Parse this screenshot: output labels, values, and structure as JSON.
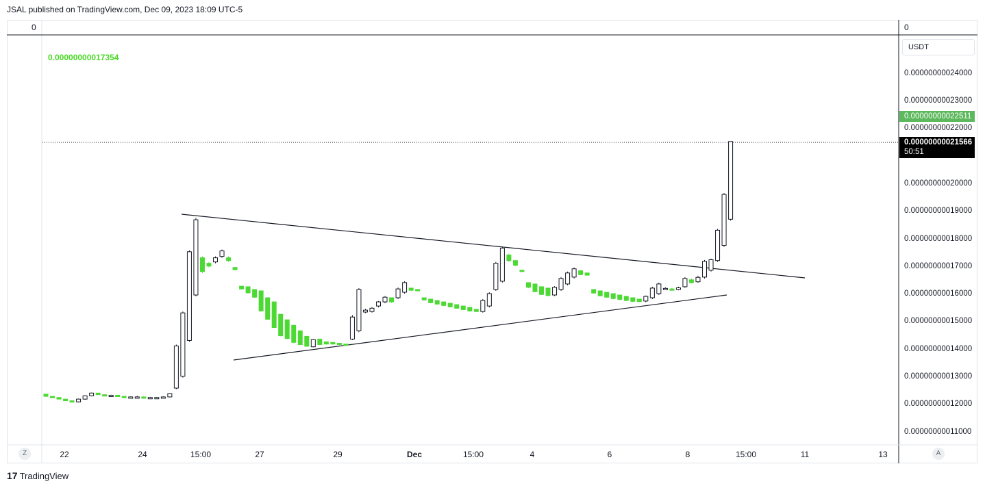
{
  "header": {
    "published_text": "JSAL published on TradingView.com, Dec 09, 2023 18:09 UTC-5"
  },
  "panes": {
    "left_scale_top": "0",
    "right_scale_top": "0"
  },
  "currency": "USDT",
  "indicator": {
    "value": "0.00000000017354",
    "color": "#48d823"
  },
  "price_axis": {
    "ticks": [
      "0.00000000024000",
      "0.00000000023000",
      "0.00000000022000",
      "0.00000000021000",
      "0.00000000020000",
      "0.00000000019000",
      "0.00000000018000",
      "0.00000000017000",
      "0.00000000016000",
      "0.00000000015000",
      "0.00000000014000",
      "0.00000000013000",
      "0.00000000012000",
      "0.00000000011000"
    ],
    "green_label": "0.00000000022511",
    "green_label_color": "#5cb85c",
    "last_price": "0.00000000021566",
    "countdown": "50:51"
  },
  "time_axis": {
    "ticks": [
      "22",
      "24",
      "15:00",
      "27",
      "29",
      "Dec",
      "15:00",
      "4",
      "6",
      "8",
      "15:00",
      "11",
      "13"
    ]
  },
  "controls": {
    "left_button": "Z",
    "right_button": "A"
  },
  "branding": {
    "logo_mark": "17",
    "logo_text": "TradingView"
  },
  "chart_data": {
    "type": "candlestick",
    "title": "",
    "ylim": [
      1.07e-10,
      2.44e-10
    ],
    "up_color": "#ffffff",
    "down_color": "#4cd934",
    "outline_color": "#131722",
    "candles": [
      {
        "o": 1.24,
        "h": 1.24,
        "l": 1.232,
        "c": 1.232
      },
      {
        "o": 1.232,
        "h": 1.232,
        "l": 1.228,
        "c": 1.228
      },
      {
        "o": 1.228,
        "h": 1.228,
        "l": 1.222,
        "c": 1.222
      },
      {
        "o": 1.222,
        "h": 1.222,
        "l": 1.216,
        "c": 1.216
      },
      {
        "o": 1.216,
        "h": 1.216,
        "l": 1.212,
        "c": 1.212
      },
      {
        "o": 1.212,
        "h": 1.224,
        "l": 1.21,
        "c": 1.222
      },
      {
        "o": 1.222,
        "h": 1.236,
        "l": 1.22,
        "c": 1.234
      },
      {
        "o": 1.234,
        "h": 1.246,
        "l": 1.232,
        "c": 1.244
      },
      {
        "o": 1.244,
        "h": 1.244,
        "l": 1.238,
        "c": 1.238
      },
      {
        "o": 1.238,
        "h": 1.238,
        "l": 1.236,
        "c": 1.236
      },
      {
        "o": 1.236,
        "h": 1.238,
        "l": 1.234,
        "c": 1.236
      },
      {
        "o": 1.236,
        "h": 1.236,
        "l": 1.232,
        "c": 1.232
      },
      {
        "o": 1.232,
        "h": 1.232,
        "l": 1.23,
        "c": 1.23
      },
      {
        "o": 1.23,
        "h": 1.232,
        "l": 1.228,
        "c": 1.23
      },
      {
        "o": 1.23,
        "h": 1.234,
        "l": 1.228,
        "c": 1.23
      },
      {
        "o": 1.23,
        "h": 1.232,
        "l": 1.226,
        "c": 1.228
      },
      {
        "o": 1.228,
        "h": 1.23,
        "l": 1.226,
        "c": 1.228
      },
      {
        "o": 1.228,
        "h": 1.23,
        "l": 1.226,
        "c": 1.228
      },
      {
        "o": 1.228,
        "h": 1.232,
        "l": 1.226,
        "c": 1.23
      },
      {
        "o": 1.23,
        "h": 1.244,
        "l": 1.228,
        "c": 1.242
      },
      {
        "o": 1.262,
        "h": 1.42,
        "l": 1.258,
        "c": 1.415
      },
      {
        "o": 1.305,
        "h": 1.54,
        "l": 1.3,
        "c": 1.535
      },
      {
        "o": 1.435,
        "h": 1.762,
        "l": 1.43,
        "c": 1.757
      },
      {
        "o": 1.6,
        "h": 1.88,
        "l": 1.595,
        "c": 1.873
      },
      {
        "o": 1.735,
        "h": 1.74,
        "l": 1.68,
        "c": 1.685
      },
      {
        "o": 1.715,
        "h": 1.72,
        "l": 1.7,
        "c": 1.705
      },
      {
        "o": 1.72,
        "h": 1.74,
        "l": 1.715,
        "c": 1.735
      },
      {
        "o": 1.74,
        "h": 1.765,
        "l": 1.735,
        "c": 1.76
      },
      {
        "o": 1.735,
        "h": 1.74,
        "l": 1.72,
        "c": 1.725
      },
      {
        "o": 1.7,
        "h": 1.7,
        "l": 1.69,
        "c": 1.692
      },
      {
        "o": 1.632,
        "h": 1.632,
        "l": 1.62,
        "c": 1.622
      },
      {
        "o": 1.63,
        "h": 1.63,
        "l": 1.605,
        "c": 1.608
      },
      {
        "o": 1.62,
        "h": 1.62,
        "l": 1.59,
        "c": 1.592
      },
      {
        "o": 1.615,
        "h": 1.615,
        "l": 1.54,
        "c": 1.542
      },
      {
        "o": 1.59,
        "h": 1.59,
        "l": 1.51,
        "c": 1.512
      },
      {
        "o": 1.575,
        "h": 1.575,
        "l": 1.48,
        "c": 1.482
      },
      {
        "o": 1.53,
        "h": 1.53,
        "l": 1.45,
        "c": 1.452
      },
      {
        "o": 1.51,
        "h": 1.51,
        "l": 1.44,
        "c": 1.442
      },
      {
        "o": 1.49,
        "h": 1.49,
        "l": 1.425,
        "c": 1.428
      },
      {
        "o": 1.47,
        "h": 1.47,
        "l": 1.418,
        "c": 1.42
      },
      {
        "o": 1.45,
        "h": 1.45,
        "l": 1.412,
        "c": 1.414
      },
      {
        "o": 1.412,
        "h": 1.44,
        "l": 1.41,
        "c": 1.438
      },
      {
        "o": 1.44,
        "h": 1.44,
        "l": 1.418,
        "c": 1.42
      },
      {
        "o": 1.43,
        "h": 1.43,
        "l": 1.42,
        "c": 1.422
      },
      {
        "o": 1.428,
        "h": 1.428,
        "l": 1.42,
        "c": 1.422
      },
      {
        "o": 1.425,
        "h": 1.425,
        "l": 1.418,
        "c": 1.42
      },
      {
        "o": 1.422,
        "h": 1.422,
        "l": 1.416,
        "c": 1.418
      },
      {
        "o": 1.44,
        "h": 1.527,
        "l": 1.436,
        "c": 1.52
      },
      {
        "o": 1.47,
        "h": 1.625,
        "l": 1.465,
        "c": 1.62
      },
      {
        "o": 1.538,
        "h": 1.55,
        "l": 1.534,
        "c": 1.545
      },
      {
        "o": 1.54,
        "h": 1.556,
        "l": 1.536,
        "c": 1.552
      },
      {
        "o": 1.56,
        "h": 1.578,
        "l": 1.555,
        "c": 1.575
      },
      {
        "o": 1.575,
        "h": 1.596,
        "l": 1.57,
        "c": 1.592
      },
      {
        "o": 1.59,
        "h": 1.59,
        "l": 1.572,
        "c": 1.575
      },
      {
        "o": 1.59,
        "h": 1.627,
        "l": 1.585,
        "c": 1.622
      },
      {
        "o": 1.61,
        "h": 1.65,
        "l": 1.605,
        "c": 1.645
      },
      {
        "o": 1.625,
        "h": 1.625,
        "l": 1.615,
        "c": 1.617
      },
      {
        "o": 1.62,
        "h": 1.62,
        "l": 1.614,
        "c": 1.616
      },
      {
        "o": 1.59,
        "h": 1.59,
        "l": 1.58,
        "c": 1.582
      },
      {
        "o": 1.585,
        "h": 1.585,
        "l": 1.57,
        "c": 1.572
      },
      {
        "o": 1.58,
        "h": 1.58,
        "l": 1.565,
        "c": 1.567
      },
      {
        "o": 1.575,
        "h": 1.575,
        "l": 1.56,
        "c": 1.562
      },
      {
        "o": 1.57,
        "h": 1.57,
        "l": 1.555,
        "c": 1.557
      },
      {
        "o": 1.565,
        "h": 1.565,
        "l": 1.55,
        "c": 1.552
      },
      {
        "o": 1.56,
        "h": 1.56,
        "l": 1.545,
        "c": 1.547
      },
      {
        "o": 1.555,
        "h": 1.555,
        "l": 1.54,
        "c": 1.542
      },
      {
        "o": 1.548,
        "h": 1.548,
        "l": 1.538,
        "c": 1.54
      },
      {
        "o": 1.54,
        "h": 1.585,
        "l": 1.536,
        "c": 1.58
      },
      {
        "o": 1.56,
        "h": 1.61,
        "l": 1.555,
        "c": 1.605
      },
      {
        "o": 1.62,
        "h": 1.72,
        "l": 1.615,
        "c": 1.715
      },
      {
        "o": 1.65,
        "h": 1.775,
        "l": 1.645,
        "c": 1.77
      },
      {
        "o": 1.745,
        "h": 1.75,
        "l": 1.72,
        "c": 1.725
      },
      {
        "o": 1.725,
        "h": 1.725,
        "l": 1.705,
        "c": 1.708
      },
      {
        "o": 1.69,
        "h": 1.69,
        "l": 1.684,
        "c": 1.686
      },
      {
        "o": 1.645,
        "h": 1.645,
        "l": 1.625,
        "c": 1.628
      },
      {
        "o": 1.64,
        "h": 1.64,
        "l": 1.61,
        "c": 1.612
      },
      {
        "o": 1.63,
        "h": 1.63,
        "l": 1.6,
        "c": 1.602
      },
      {
        "o": 1.625,
        "h": 1.625,
        "l": 1.595,
        "c": 1.598
      },
      {
        "o": 1.6,
        "h": 1.632,
        "l": 1.596,
        "c": 1.628
      },
      {
        "o": 1.62,
        "h": 1.665,
        "l": 1.615,
        "c": 1.66
      },
      {
        "o": 1.64,
        "h": 1.685,
        "l": 1.635,
        "c": 1.68
      },
      {
        "o": 1.665,
        "h": 1.7,
        "l": 1.66,
        "c": 1.695
      },
      {
        "o": 1.688,
        "h": 1.688,
        "l": 1.672,
        "c": 1.674
      },
      {
        "o": 1.68,
        "h": 1.68,
        "l": 1.67,
        "c": 1.672
      },
      {
        "o": 1.62,
        "h": 1.62,
        "l": 1.605,
        "c": 1.607
      },
      {
        "o": 1.615,
        "h": 1.615,
        "l": 1.595,
        "c": 1.597
      },
      {
        "o": 1.61,
        "h": 1.61,
        "l": 1.59,
        "c": 1.592
      },
      {
        "o": 1.605,
        "h": 1.605,
        "l": 1.585,
        "c": 1.587
      },
      {
        "o": 1.6,
        "h": 1.6,
        "l": 1.582,
        "c": 1.584
      },
      {
        "o": 1.595,
        "h": 1.595,
        "l": 1.578,
        "c": 1.58
      },
      {
        "o": 1.59,
        "h": 1.59,
        "l": 1.575,
        "c": 1.577
      },
      {
        "o": 1.585,
        "h": 1.585,
        "l": 1.574,
        "c": 1.576
      },
      {
        "o": 1.578,
        "h": 1.598,
        "l": 1.574,
        "c": 1.595
      },
      {
        "o": 1.59,
        "h": 1.63,
        "l": 1.585,
        "c": 1.625
      },
      {
        "o": 1.605,
        "h": 1.645,
        "l": 1.6,
        "c": 1.64
      },
      {
        "o": 1.622,
        "h": 1.628,
        "l": 1.618,
        "c": 1.624
      },
      {
        "o": 1.622,
        "h": 1.626,
        "l": 1.617,
        "c": 1.62
      },
      {
        "o": 1.62,
        "h": 1.63,
        "l": 1.617,
        "c": 1.626
      },
      {
        "o": 1.63,
        "h": 1.665,
        "l": 1.626,
        "c": 1.66
      },
      {
        "o": 1.655,
        "h": 1.66,
        "l": 1.642,
        "c": 1.645
      },
      {
        "o": 1.648,
        "h": 1.67,
        "l": 1.644,
        "c": 1.664
      },
      {
        "o": 1.665,
        "h": 1.727,
        "l": 1.66,
        "c": 1.722
      },
      {
        "o": 1.69,
        "h": 1.732,
        "l": 1.685,
        "c": 1.728
      },
      {
        "o": 1.725,
        "h": 1.84,
        "l": 1.72,
        "c": 1.835
      },
      {
        "o": 1.78,
        "h": 1.97,
        "l": 1.775,
        "c": 1.965
      },
      {
        "o": 1.875,
        "h": 2.157,
        "l": 1.87,
        "c": 2.157
      }
    ],
    "candle_unit": "1e-10",
    "trendlines": [
      {
        "name": "upper-resistance",
        "from": [
          0,
          1.9
        ],
        "to": [
          1,
          1.663
        ]
      },
      {
        "name": "lower-support",
        "from": [
          0,
          1.37
        ],
        "to": [
          1,
          1.6
        ]
      }
    ]
  }
}
